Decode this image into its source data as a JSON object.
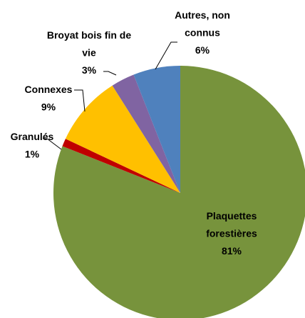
{
  "chart_data": {
    "type": "pie",
    "categories": [
      "Plaquettes forestières",
      "Granulés",
      "Connexes",
      "Broyat bois fin de vie",
      "Autres, non connus"
    ],
    "values": [
      81,
      1,
      9,
      3,
      6
    ],
    "value_labels": [
      "81%",
      "1%",
      "9%",
      "3%",
      "6%"
    ],
    "colors": [
      "#77933c",
      "#c00000",
      "#ffc000",
      "#8064a2",
      "#4f81bd"
    ]
  }
}
